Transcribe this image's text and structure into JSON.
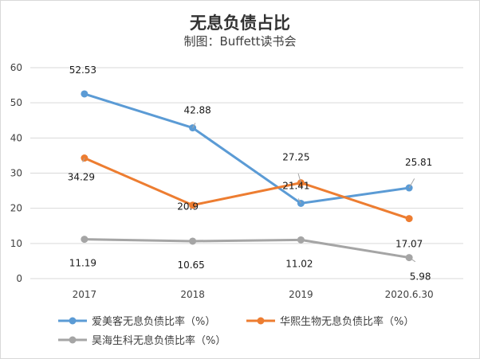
{
  "chart_data": {
    "type": "line",
    "title": "无息负债占比",
    "subtitle": "制图：Buffett读书会",
    "xlabel": "",
    "ylabel": "",
    "categories": [
      "2017",
      "2018",
      "2019",
      "2020.6.30"
    ],
    "ylim": [
      0,
      60
    ],
    "yticks": [
      "0",
      "10",
      "20",
      "30",
      "40",
      "50",
      "60"
    ],
    "grid": true,
    "legend_position": "bottom",
    "series": [
      {
        "name": "爱美客无息负债比率（%）",
        "color": "#5B9BD5",
        "values": [
          52.53,
          42.88,
          21.41,
          25.81
        ],
        "labels": [
          "52.53",
          "42.88",
          "21.41",
          "25.81"
        ]
      },
      {
        "name": "华熙生物无息负债比率（%）",
        "color": "#ED7D31",
        "values": [
          34.29,
          20.9,
          27.25,
          17.07
        ],
        "labels": [
          "34.29",
          "20.9",
          "27.25",
          "17.07"
        ]
      },
      {
        "name": "昊海生科无息负债比率（%）",
        "color": "#A5A5A5",
        "values": [
          11.19,
          10.65,
          11.02,
          5.98
        ],
        "labels": [
          "11.19",
          "10.65",
          "11.02",
          "5.98"
        ]
      }
    ]
  }
}
